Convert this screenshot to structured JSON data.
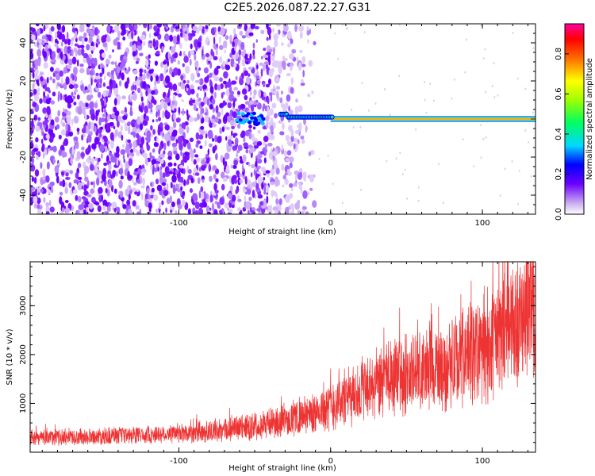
{
  "title": "C2E5.2026.087.22.27.G31",
  "chart_data": [
    {
      "type": "heatmap",
      "xlabel": "Height of straight line (km)",
      "ylabel": "Frequency (Hz)",
      "xlim": [
        -198,
        135
      ],
      "ylim": [
        -50,
        50
      ],
      "xticks": [
        -100,
        0,
        100
      ],
      "yticks": [
        -40,
        -20,
        0,
        20,
        40
      ],
      "colorbar": {
        "label": "Normalized spectral amplitude",
        "range": [
          0,
          0.95
        ],
        "ticks": [
          0.0,
          0.2,
          0.4,
          0.6,
          0.8
        ]
      },
      "features": {
        "noise_region_x": [
          -198,
          -30
        ],
        "signal_line_x": [
          -33,
          135
        ],
        "signal_frequency": 0
      }
    },
    {
      "type": "line",
      "xlabel": "Height of straight line (km)",
      "ylabel": "SNR (10 * v/v)",
      "xlim": [
        -198,
        135
      ],
      "ylim": [
        0,
        3900
      ],
      "xticks": [
        -100,
        0,
        100
      ],
      "yticks": [
        1000,
        2000,
        3000
      ],
      "series_color": "#ee3333",
      "trend": {
        "x": [
          -198,
          -150,
          -100,
          -70,
          -50,
          -30,
          -10,
          0,
          20,
          40,
          60,
          80,
          100,
          120,
          135
        ],
        "y": [
          300,
          330,
          380,
          450,
          550,
          650,
          800,
          950,
          1250,
          1500,
          1650,
          1800,
          2100,
          2600,
          2950
        ]
      }
    }
  ]
}
